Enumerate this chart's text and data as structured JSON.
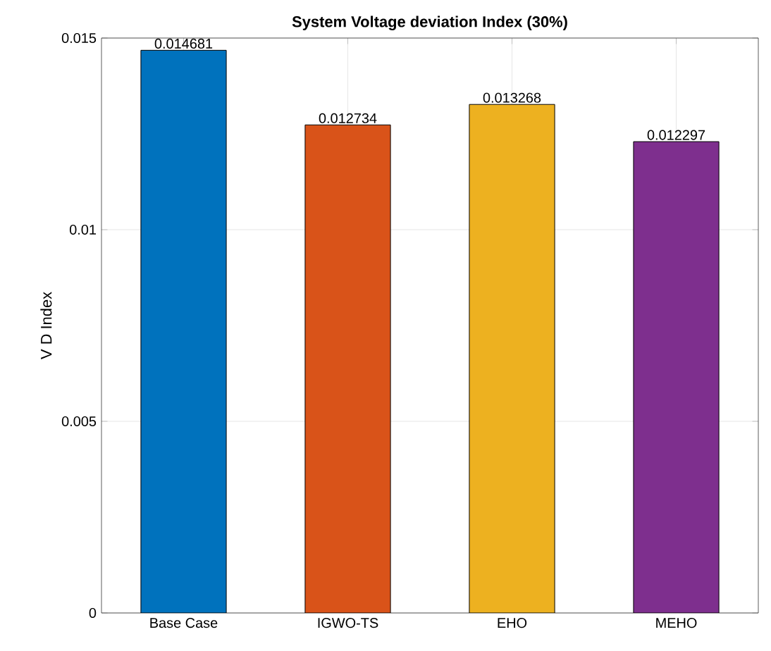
{
  "chart_data": {
    "type": "bar",
    "title": "System Voltage deviation Index (30%)",
    "ylabel": "V D Index",
    "categories": [
      "Base Case",
      "IGWO-TS",
      "EHO",
      "MEHO"
    ],
    "values": [
      0.014681,
      0.012734,
      0.013268,
      0.012297
    ],
    "colors": [
      "#0072bd",
      "#d95319",
      "#edb120",
      "#7e2f8e"
    ],
    "value_labels": [
      "0.014681",
      "0.012734",
      "0.013268",
      "0.012297"
    ],
    "ylim": [
      0,
      0.015
    ],
    "yticks": [
      0,
      0.005,
      0.01,
      0.015
    ],
    "grid": true
  }
}
